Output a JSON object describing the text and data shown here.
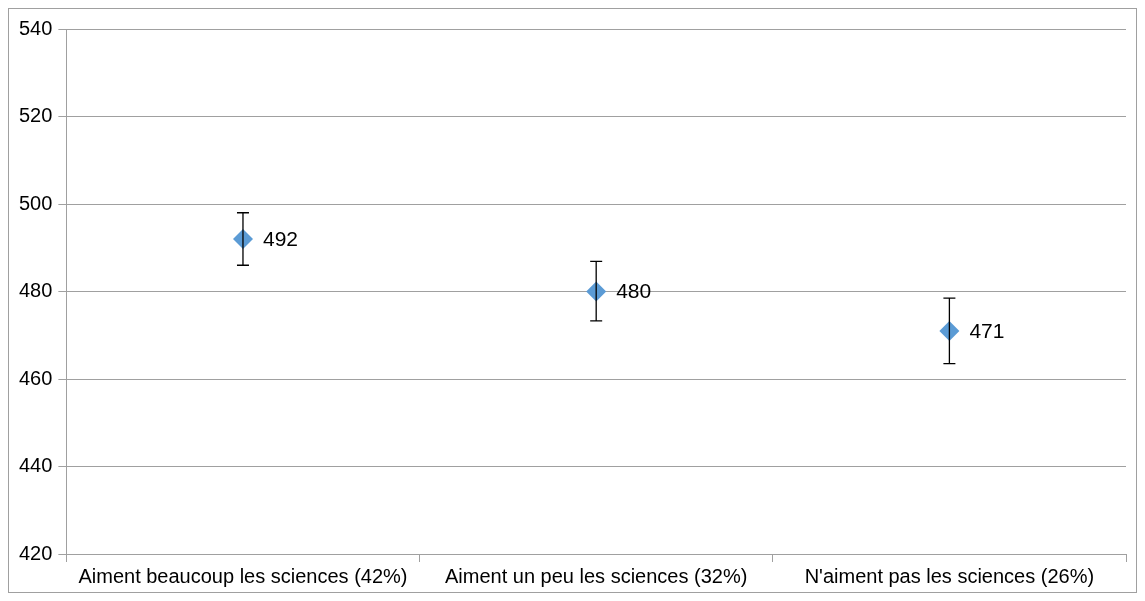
{
  "chart_data": {
    "type": "scatter",
    "categories": [
      "Aiment beaucoup les sciences (42%)",
      "Aiment un peu les sciences (32%)",
      "N'aiment pas les sciences (26%)"
    ],
    "values": [
      492,
      480,
      471
    ],
    "errors": [
      [
        486,
        498
      ],
      [
        473.3,
        486.9
      ],
      [
        463.5,
        478.5
      ]
    ],
    "color": "#5b9bd5",
    "marker": "diamond",
    "data_labels": true,
    "ylim": [
      420,
      540
    ],
    "yticks": [
      420,
      440,
      460,
      480,
      500,
      520,
      540
    ],
    "grid": "y",
    "legend": false
  }
}
